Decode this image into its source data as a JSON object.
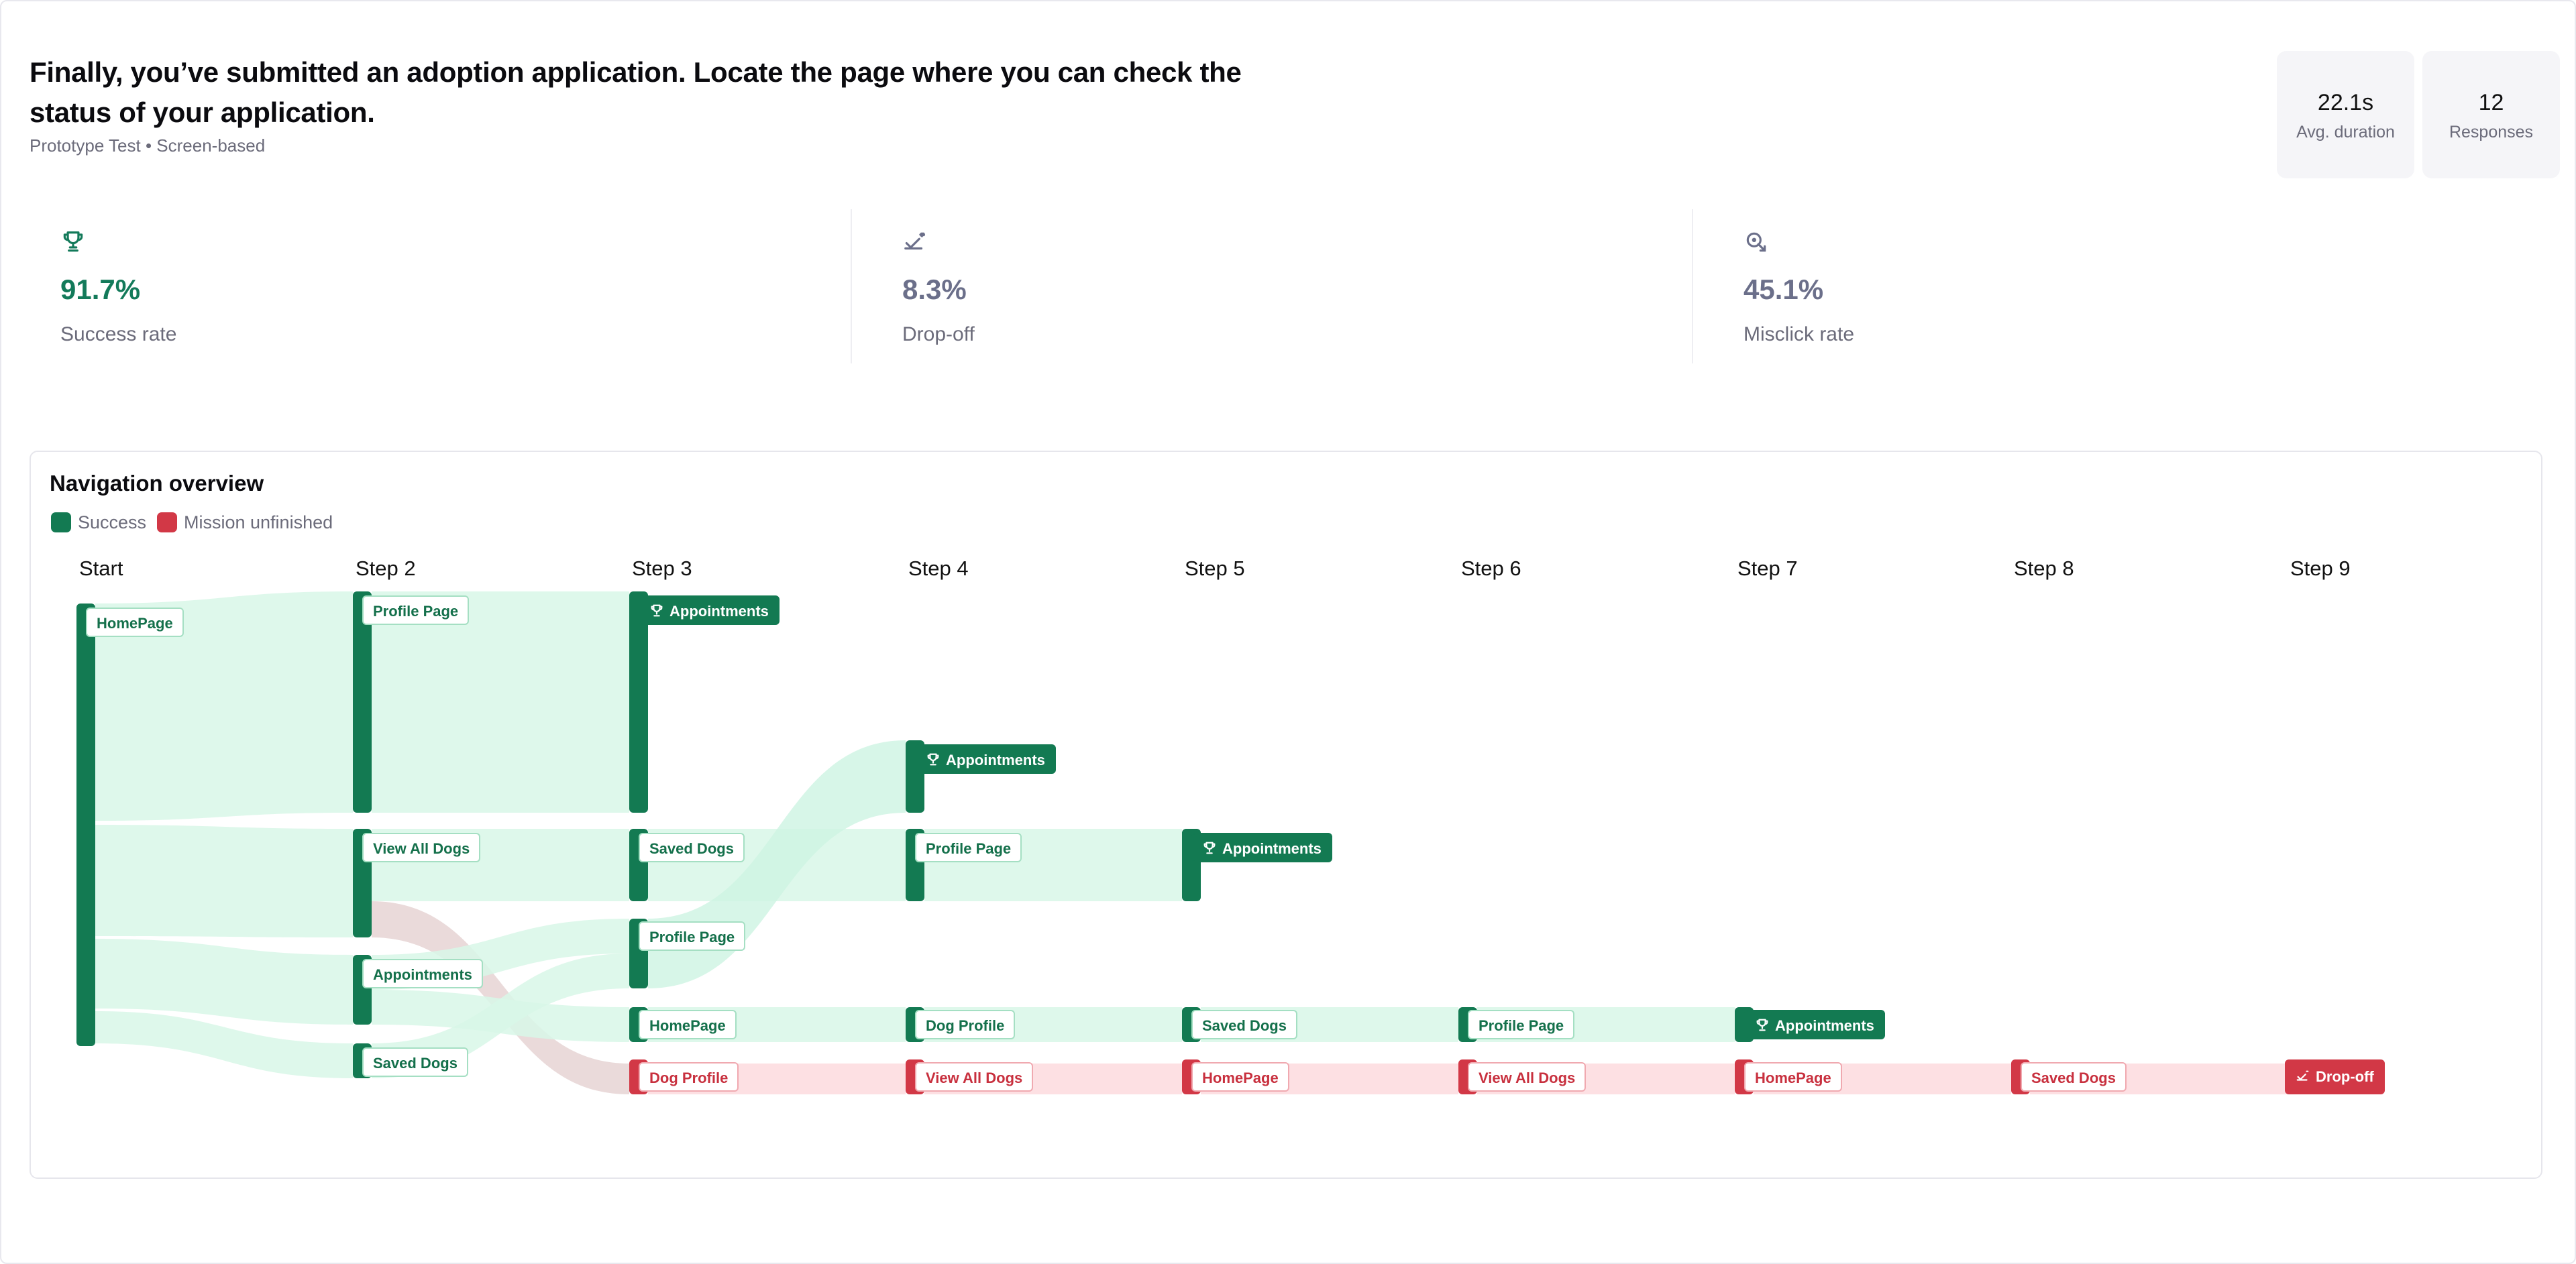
{
  "task": {
    "title": "Finally, you’ve submitted an adoption application. Locate the page where you can check the status of your application.",
    "meta": "Prototype Test • Screen-based"
  },
  "stats": {
    "avg_duration": {
      "value": "22.1s",
      "label": "Avg. duration"
    },
    "responses": {
      "value": "12",
      "label": "Responses"
    }
  },
  "metrics": {
    "success": {
      "value": "91.7%",
      "label": "Success rate",
      "icon": "trophy-icon",
      "color": "#137a5a"
    },
    "dropoff": {
      "value": "8.3%",
      "label": "Drop-off",
      "icon": "drop-off-icon",
      "color": "#6b6f8a"
    },
    "misclick": {
      "value": "45.1%",
      "label": "Misclick rate",
      "icon": "misclick-icon",
      "color": "#6b6f8a"
    }
  },
  "navigation": {
    "title": "Navigation overview",
    "legend": [
      {
        "label": "Success",
        "color": "#137a52"
      },
      {
        "label": "Mission unfinished",
        "color": "#d23846"
      }
    ],
    "steps": [
      "Start",
      "Step 2",
      "Step 3",
      "Step 4",
      "Step 5",
      "Step 6",
      "Step 7",
      "Step 8",
      "Step 9"
    ],
    "nodes": [
      {
        "id": "n1",
        "step": 0,
        "label": "HomePage",
        "status": "success"
      },
      {
        "id": "n2",
        "step": 1,
        "label": "Profile Page",
        "status": "success"
      },
      {
        "id": "n3",
        "step": 1,
        "label": "View All Dogs",
        "status": "success"
      },
      {
        "id": "n4",
        "step": 1,
        "label": "Appointments",
        "status": "success"
      },
      {
        "id": "n5",
        "step": 1,
        "label": "Saved Dogs",
        "status": "success"
      },
      {
        "id": "n6",
        "step": 2,
        "label": "Appointments",
        "status": "success",
        "goal": true
      },
      {
        "id": "n7",
        "step": 2,
        "label": "Saved Dogs",
        "status": "success"
      },
      {
        "id": "n8",
        "step": 2,
        "label": "Profile Page",
        "status": "success"
      },
      {
        "id": "n9",
        "step": 2,
        "label": "HomePage",
        "status": "success"
      },
      {
        "id": "n10",
        "step": 2,
        "label": "Dog Profile",
        "status": "unfinished"
      },
      {
        "id": "n11",
        "step": 3,
        "label": "Appointments",
        "status": "success",
        "goal": true
      },
      {
        "id": "n12",
        "step": 3,
        "label": "Profile Page",
        "status": "success"
      },
      {
        "id": "n13",
        "step": 3,
        "label": "Dog Profile",
        "status": "success"
      },
      {
        "id": "n14",
        "step": 3,
        "label": "View All Dogs",
        "status": "unfinished"
      },
      {
        "id": "n15",
        "step": 4,
        "label": "Appointments",
        "status": "success",
        "goal": true
      },
      {
        "id": "n16",
        "step": 4,
        "label": "Saved Dogs",
        "status": "success"
      },
      {
        "id": "n17",
        "step": 4,
        "label": "HomePage",
        "status": "unfinished"
      },
      {
        "id": "n18",
        "step": 5,
        "label": "Profile Page",
        "status": "success"
      },
      {
        "id": "n19",
        "step": 5,
        "label": "View All Dogs",
        "status": "unfinished"
      },
      {
        "id": "n20",
        "step": 6,
        "label": "Appointments",
        "status": "success",
        "goal": true
      },
      {
        "id": "n21",
        "step": 6,
        "label": "HomePage",
        "status": "unfinished"
      },
      {
        "id": "n22",
        "step": 7,
        "label": "Saved Dogs",
        "status": "unfinished"
      },
      {
        "id": "n23",
        "step": 8,
        "label": "Drop-off",
        "status": "unfinished",
        "dropoff": true
      }
    ]
  }
}
